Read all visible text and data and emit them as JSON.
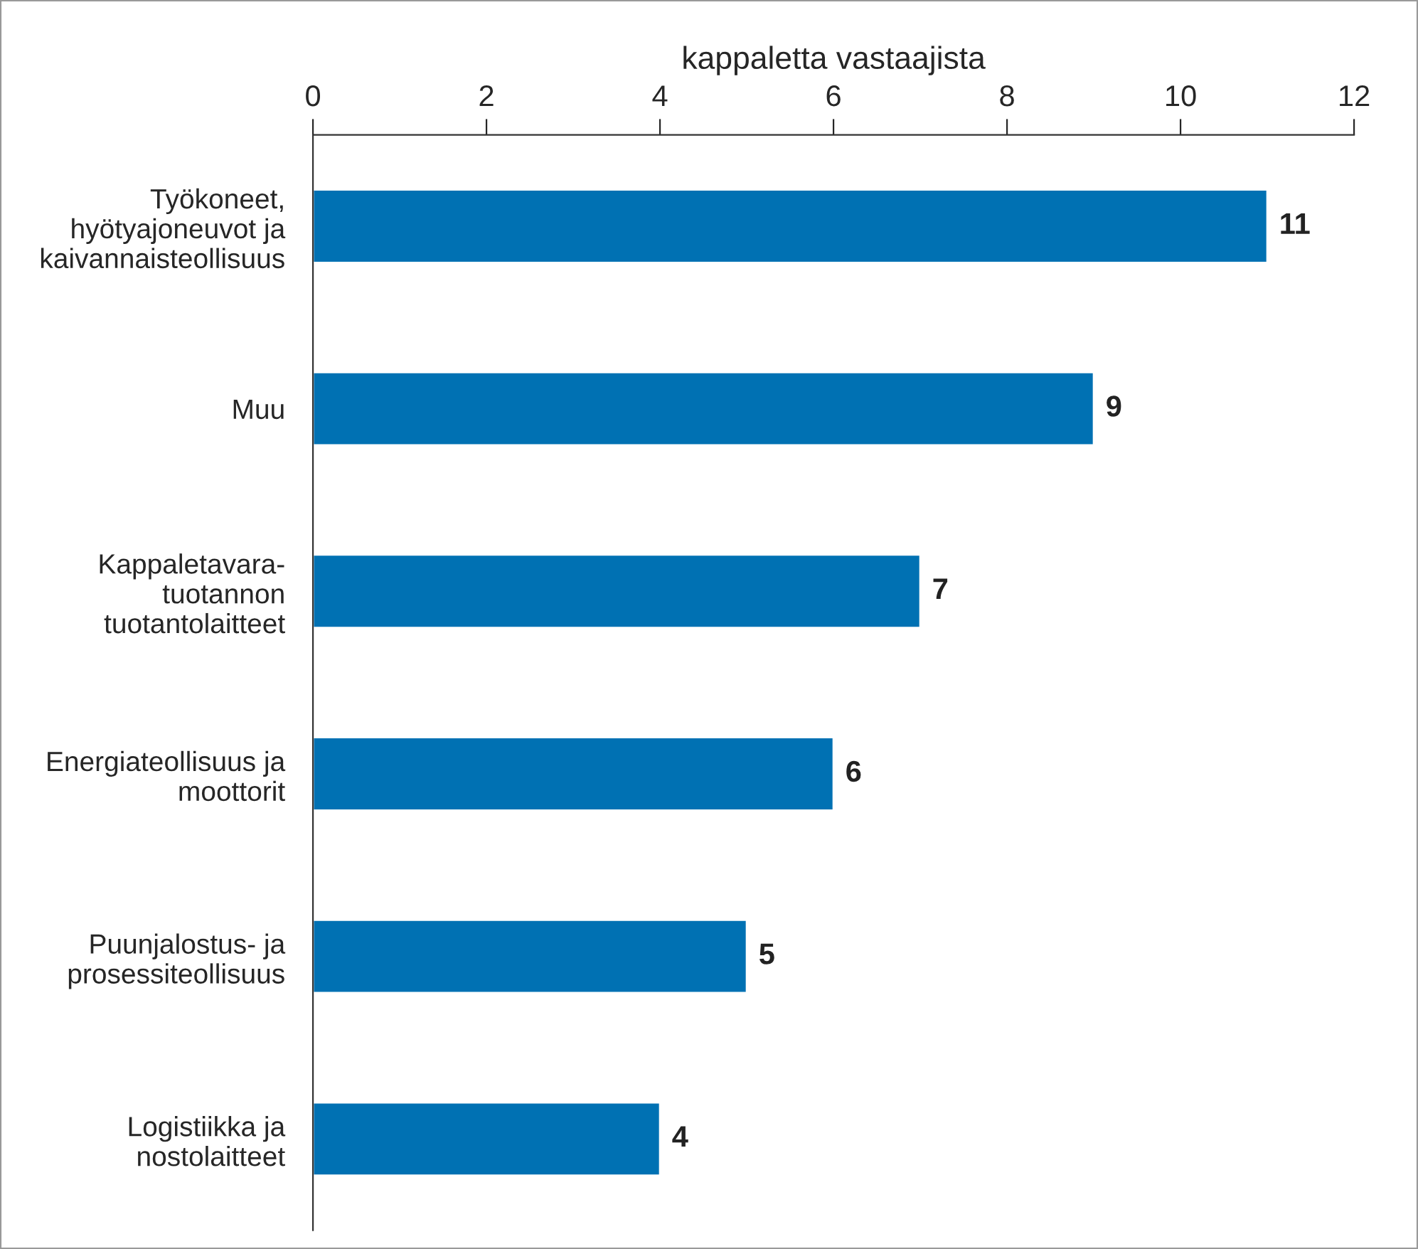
{
  "chart_data": {
    "type": "bar",
    "orientation": "horizontal",
    "xlabel": "kappaletta vastaajista",
    "categories": [
      "Työkoneet,\nhyötyajoneuvot ja\nkaivannaisteollisuus",
      "Muu",
      "Kappaletavara-\ntuotannon\ntuotantolaitteet",
      "Energiateollisuus ja\nmoottorit",
      "Puunjalostus- ja\nprosessiteollisuus",
      "Logistiikka ja\nnostolaitteet"
    ],
    "values": [
      11,
      9,
      7,
      6,
      5,
      4
    ],
    "color": "#0071b3",
    "xlim": [
      0,
      12
    ],
    "xticks": [
      0,
      2,
      4,
      6,
      8,
      10,
      12
    ],
    "data_labels": true,
    "grid": false,
    "legend": false
  }
}
